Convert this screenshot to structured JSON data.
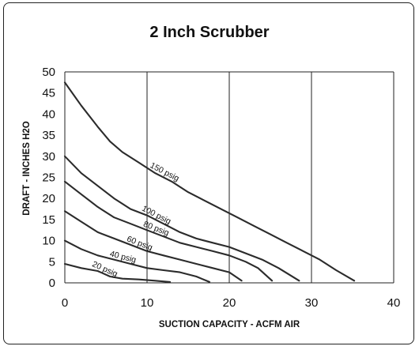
{
  "chart_data": {
    "type": "line",
    "title": "2 Inch Scrubber",
    "xlabel": "SUCTION CAPACITY - ACFM AIR",
    "ylabel": "DRAFT - INCHES H2O",
    "xlim": [
      0,
      40
    ],
    "ylim": [
      0,
      50
    ],
    "x_ticks": [
      0,
      10,
      20,
      30,
      40
    ],
    "y_ticks": [
      0,
      5,
      10,
      15,
      20,
      25,
      30,
      35,
      40,
      45,
      50
    ],
    "grid": true,
    "series": [
      {
        "name": "150 psig",
        "x": [
          0,
          2,
          4,
          5.5,
          7,
          9,
          11,
          13,
          15,
          17,
          19,
          21,
          23,
          25,
          27,
          29,
          31,
          33,
          35.2
        ],
        "y": [
          47.5,
          42,
          37,
          33.5,
          31,
          28.5,
          26,
          24,
          21.5,
          19.5,
          17.5,
          15.5,
          13.5,
          11.5,
          9.5,
          7.5,
          5.5,
          3,
          0.5
        ]
      },
      {
        "name": "100 psig",
        "x": [
          0,
          2,
          4,
          6,
          8,
          10,
          12,
          14,
          16,
          18,
          20,
          22,
          24,
          26,
          28.5
        ],
        "y": [
          30,
          26,
          23,
          20,
          17.5,
          16,
          14,
          12,
          10.5,
          9.5,
          8.5,
          7,
          5.5,
          3.5,
          0.5
        ]
      },
      {
        "name": "80 psig",
        "x": [
          0,
          2,
          4,
          6,
          8,
          10,
          12,
          14,
          16,
          18,
          20,
          22,
          23.5,
          25.2
        ],
        "y": [
          24,
          21,
          18,
          15.5,
          14,
          12.5,
          11,
          9.5,
          8.5,
          7.5,
          6.5,
          5,
          3.5,
          0.5
        ]
      },
      {
        "name": "60 psig",
        "x": [
          0,
          2,
          4,
          6,
          8,
          10,
          12,
          14,
          16,
          18,
          20,
          21.5
        ],
        "y": [
          17,
          14.5,
          12,
          10.5,
          9,
          7.5,
          6.5,
          5.5,
          4.5,
          3.5,
          2.5,
          0.5
        ]
      },
      {
        "name": "40 psig",
        "x": [
          0,
          2,
          4,
          6,
          8,
          10,
          12,
          14,
          16,
          17.6
        ],
        "y": [
          10,
          8,
          6.5,
          5.5,
          4.5,
          3.5,
          3,
          2.5,
          1.5,
          0.2
        ]
      },
      {
        "name": "20 psig",
        "x": [
          0,
          2,
          4,
          5.5,
          7,
          9,
          11,
          12.8
        ],
        "y": [
          4.5,
          3.5,
          2.8,
          1.5,
          1,
          0.8,
          0.5,
          0.2
        ]
      }
    ]
  }
}
